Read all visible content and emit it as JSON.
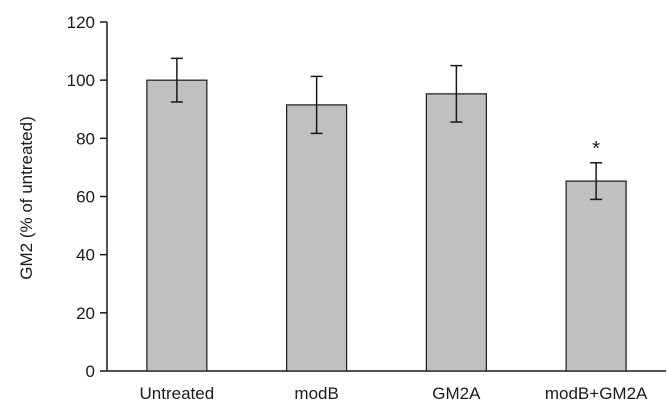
{
  "chart_data": {
    "type": "bar",
    "ylabel": "GM2 (% of untreated)",
    "xlabel": "",
    "categories": [
      "Untreated",
      "modB",
      "GM2A",
      "modB+GM2A"
    ],
    "values": [
      100,
      91.5,
      95.3,
      65.3
    ],
    "errors": [
      7.5,
      9.8,
      9.7,
      6.3
    ],
    "annotations": [
      "",
      "",
      "",
      "*"
    ],
    "ylim": [
      0,
      120
    ],
    "yticks": [
      0,
      20,
      40,
      60,
      80,
      100,
      120
    ],
    "grid": false,
    "bar_color": "#c0c0c0",
    "bar_edge_color": "#1a1a1a"
  }
}
